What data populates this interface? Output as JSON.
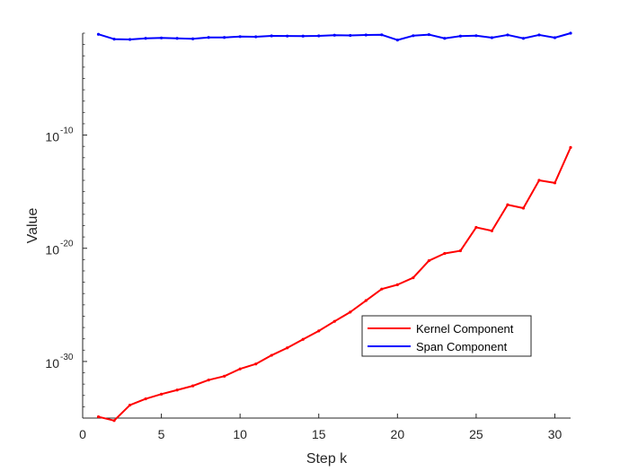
{
  "chart_data": {
    "type": "line",
    "xlabel": "Step k",
    "ylabel": "Value",
    "xscale": "linear",
    "yscale": "log",
    "xlim": [
      0,
      31
    ],
    "ylim": [
      1e-35,
      0.1
    ],
    "xticks": [
      0,
      5,
      10,
      15,
      20,
      25,
      30
    ],
    "xtick_labels": [
      "0",
      "5",
      "10",
      "15",
      "20",
      "25",
      "30"
    ],
    "yticks": [
      {
        "value": 1e-30,
        "base": "10",
        "exponent": "-30"
      },
      {
        "value": 1e-20,
        "base": "10",
        "exponent": "-20"
      },
      {
        "value": 1e-10,
        "base": "10",
        "exponent": "-10"
      }
    ],
    "grid": false,
    "legend_position": "lower-right",
    "x": [
      1,
      2,
      3,
      4,
      5,
      6,
      7,
      8,
      9,
      10,
      11,
      12,
      13,
      14,
      15,
      16,
      17,
      18,
      19,
      20,
      21,
      22,
      23,
      24,
      25,
      26,
      27,
      28,
      29,
      30,
      31
    ],
    "series": [
      {
        "name": "Kernel Component",
        "color": "#ff0000",
        "marker": "dot",
        "values": [
          1.3e-35,
          6e-36,
          1.4e-34,
          5e-34,
          1.3e-33,
          3e-33,
          7e-33,
          2.3e-32,
          5e-32,
          2.2e-31,
          6e-31,
          3.5e-30,
          1.6e-29,
          9e-29,
          5e-28,
          3.5e-27,
          2.3e-26,
          2.4e-25,
          2.5e-24,
          6e-24,
          2.5e-23,
          8e-22,
          3.5e-21,
          6e-21,
          7e-19,
          3.5e-19,
          7e-17,
          3.5e-17,
          1e-14,
          6e-15,
          8e-12
        ]
      },
      {
        "name": "Span Component",
        "color": "#0000ff",
        "marker": "dot",
        "values": [
          0.08,
          0.03,
          0.028,
          0.035,
          0.038,
          0.035,
          0.032,
          0.042,
          0.042,
          0.05,
          0.048,
          0.058,
          0.056,
          0.055,
          0.058,
          0.066,
          0.063,
          0.069,
          0.072,
          0.025,
          0.06,
          0.075,
          0.035,
          0.055,
          0.06,
          0.04,
          0.07,
          0.035,
          0.07,
          0.04,
          0.1
        ]
      }
    ]
  }
}
